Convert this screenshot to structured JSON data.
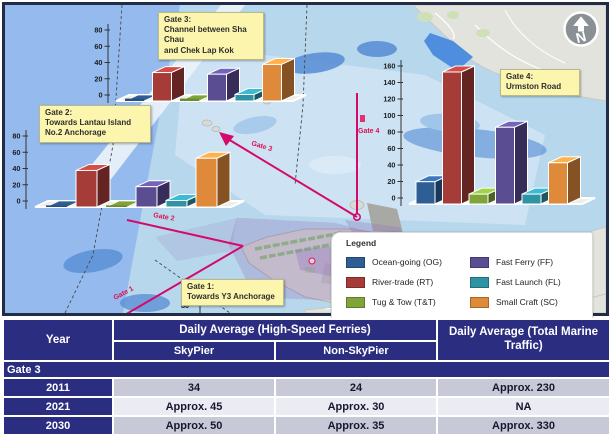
{
  "map": {
    "compass_label": "N",
    "stray_tick_label": "80",
    "gate_tags": {
      "gate1": "Gate 1",
      "gate2": "Gate 2",
      "gate3": "Gate 3",
      "gate4": "Gate 4"
    },
    "callouts": {
      "gate1": {
        "title": "Gate 1:",
        "lines": [
          "Towards Y3 Anchorage"
        ]
      },
      "gate2": {
        "title": "Gate 2:",
        "lines": [
          "Towards Lantau Island",
          "No.2 Anchorage"
        ]
      },
      "gate3": {
        "title": "Gate 3:",
        "lines": [
          "Channel between Sha Chau",
          "and Chek Lap Kok"
        ]
      },
      "gate4": {
        "title": "Gate 4:",
        "lines": [
          "Urmston Road"
        ]
      }
    }
  },
  "legend": {
    "title": "Legend",
    "items": [
      {
        "code": "OG",
        "label": "Ocean-going (OG)",
        "color": "#2f5e95"
      },
      {
        "code": "RT",
        "label": "River-trade (RT)",
        "color": "#a63c38"
      },
      {
        "code": "T&T",
        "label": "Tug & Tow (T&T)",
        "color": "#7fa53a"
      },
      {
        "code": "FF",
        "label": "Fast Ferry (FF)",
        "color": "#5a4d92"
      },
      {
        "code": "FL",
        "label": "Fast Launch (FL)",
        "color": "#2e93a4"
      },
      {
        "code": "SC",
        "label": "Small Craft (SC)",
        "color": "#de8a3a"
      }
    ]
  },
  "chart_data": [
    {
      "id": "gate2",
      "type": "bar",
      "title": "Gate 2: Towards Lantau Island No.2 Anchorage",
      "categories": [
        "OG",
        "RT",
        "T&T",
        "FF",
        "FL",
        "SC"
      ],
      "values": [
        2,
        45,
        2,
        25,
        8,
        60
      ],
      "ylim": [
        0,
        80
      ],
      "ytick_step": 20,
      "legend_position": "shared map legend"
    },
    {
      "id": "gate3",
      "type": "bar",
      "title": "Gate 3: Channel between Sha Chau and Chek Lap Kok",
      "categories": [
        "OG",
        "RT",
        "T&T",
        "FF",
        "FL",
        "SC"
      ],
      "values": [
        3,
        35,
        3,
        33,
        8,
        45
      ],
      "ylim": [
        0,
        80
      ],
      "ytick_step": 20,
      "legend_position": "shared map legend"
    },
    {
      "id": "gate4",
      "type": "bar",
      "title": "Gate 4: Urmston Road",
      "categories": [
        "OG",
        "RT",
        "T&T",
        "FF",
        "FL",
        "SC"
      ],
      "values": [
        27,
        160,
        12,
        93,
        12,
        50
      ],
      "ylim": [
        0,
        160
      ],
      "ytick_step": 20,
      "legend_position": "shared map legend"
    }
  ],
  "table": {
    "col_year": "Year",
    "col_hsf": "Daily Average (High-Speed Ferries)",
    "col_skypier": "SkyPier",
    "col_nonskypier": "Non-SkyPier",
    "col_total": "Daily Average (Total Marine Traffic)",
    "section": "Gate 3",
    "rows": [
      {
        "year": "2011",
        "skypier": "34",
        "nonskypier": "24",
        "total": "Approx. 230"
      },
      {
        "year": "2021",
        "skypier": "Approx. 45",
        "nonskypier": "Approx. 30",
        "total": "NA"
      },
      {
        "year": "2030",
        "skypier": "Approx. 50",
        "nonskypier": "Approx. 35",
        "total": "Approx. 330"
      }
    ]
  }
}
